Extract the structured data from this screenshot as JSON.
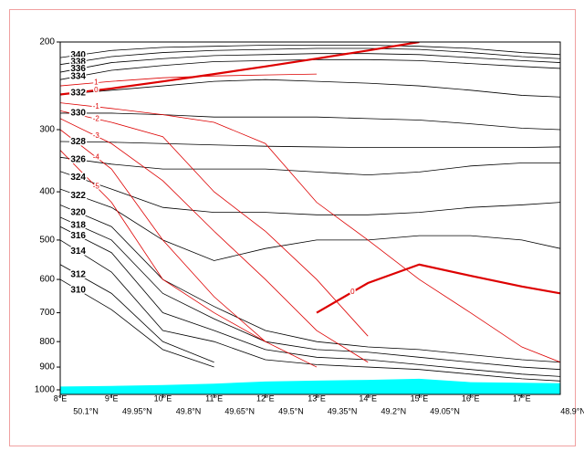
{
  "chart_data": {
    "type": "line",
    "x": [
      8,
      9,
      10,
      11,
      12,
      13,
      14,
      15,
      16,
      17,
      17.75
    ],
    "xlim": [
      8,
      17.75
    ],
    "xticks": [
      {
        "value": 8,
        "label": "8°E"
      },
      {
        "value": 9,
        "label": "9°E"
      },
      {
        "value": 10,
        "label": "10°E"
      },
      {
        "value": 11,
        "label": "11°E"
      },
      {
        "value": 12,
        "label": "12°E"
      },
      {
        "value": 13,
        "label": "13°E"
      },
      {
        "value": 14,
        "label": "14°E"
      },
      {
        "value": 15,
        "label": "15°E"
      },
      {
        "value": 16,
        "label": "16°E"
      },
      {
        "value": 17,
        "label": "17°E"
      }
    ],
    "x2ticks": [
      {
        "value": 8.5,
        "label": "50.1°N"
      },
      {
        "value": 9.5,
        "label": "49.95°N"
      },
      {
        "value": 10.5,
        "label": "49.8°N"
      },
      {
        "value": 11.5,
        "label": "49.65°N"
      },
      {
        "value": 12.5,
        "label": "49.5°N"
      },
      {
        "value": 13.5,
        "label": "49.35°N"
      },
      {
        "value": 14.5,
        "label": "49.2°N"
      },
      {
        "value": 15.5,
        "label": "49.05°N"
      },
      {
        "value": 18,
        "label": "48.9°N"
      }
    ],
    "ylim": [
      1000,
      200
    ],
    "yscale": "log",
    "yticks": [
      200,
      300,
      400,
      500,
      600,
      700,
      800,
      900,
      1000
    ],
    "terrain": {
      "color": "#00ffff",
      "values": [
        985,
        982,
        978,
        972,
        962,
        958,
        955,
        950,
        965,
        968,
        970
      ]
    },
    "series": [
      {
        "name": "340",
        "color": "#000000",
        "values": [
          215,
          208,
          205,
          204,
          203,
          203,
          203,
          204,
          206,
          210,
          212
        ]
      },
      {
        "name": "338",
        "color": "#000000",
        "values": [
          222,
          214,
          210,
          208,
          207,
          206,
          206,
          207,
          210,
          214,
          216
        ]
      },
      {
        "name": "336",
        "color": "#000000",
        "values": [
          230,
          220,
          216,
          213,
          212,
          211,
          211,
          212,
          215,
          218,
          220
        ]
      },
      {
        "name": "334",
        "color": "#000000",
        "values": [
          238,
          228,
          223,
          219,
          218,
          217,
          217,
          218,
          221,
          224,
          226
        ]
      },
      {
        "name": "332",
        "color": "#000000",
        "values": [
          255,
          250,
          245,
          240,
          238,
          240,
          242,
          245,
          250,
          256,
          258
        ]
      },
      {
        "name": "330",
        "color": "#000000",
        "values": [
          278,
          278,
          280,
          283,
          283,
          283,
          285,
          287,
          292,
          298,
          300
        ]
      },
      {
        "name": "328",
        "color": "#000000",
        "values": [
          317,
          318,
          320,
          322,
          324,
          325,
          326,
          326,
          326,
          326,
          325
        ]
      },
      {
        "name": "326",
        "color": "#000000",
        "values": [
          341,
          352,
          360,
          360,
          360,
          365,
          370,
          365,
          355,
          350,
          350
        ]
      },
      {
        "name": "324",
        "color": "#000000",
        "values": [
          364,
          395,
          430,
          440,
          440,
          445,
          445,
          440,
          430,
          425,
          420
        ]
      },
      {
        "name": "322",
        "color": "#000000",
        "values": [
          395,
          430,
          500,
          550,
          520,
          500,
          500,
          490,
          490,
          500,
          520
        ]
      },
      {
        "name": "320",
        "color": "#000000",
        "values": [
          425,
          470,
          600,
          680,
          760,
          800,
          820,
          830,
          850,
          870,
          880
        ]
      },
      {
        "name": "318",
        "color": "#000000",
        "values": [
          450,
          500,
          640,
          720,
          800,
          830,
          840,
          860,
          880,
          900,
          910
        ]
      },
      {
        "name": "316",
        "color": "#000000",
        "values": [
          470,
          530,
          700,
          760,
          830,
          860,
          870,
          890,
          910,
          930,
          940
        ]
      },
      {
        "name": "314",
        "color": "#000000",
        "values": [
          500,
          580,
          760,
          800,
          870,
          890,
          900,
          910,
          930,
          950,
          960
        ]
      },
      {
        "name": "312",
        "color": "#000000",
        "values": [
          560,
          640,
          800,
          880,
          null,
          null,
          null,
          null,
          null,
          null,
          null
        ]
      },
      {
        "name": "310",
        "color": "#000000",
        "values": [
          600,
          690,
          830,
          900,
          null,
          null,
          null,
          null,
          null,
          null,
          null
        ]
      },
      {
        "name": "1",
        "color": "#dd0000",
        "values": [
          245,
          240,
          236,
          234,
          233,
          232,
          null,
          null,
          null,
          null,
          null
        ]
      },
      {
        "name": "0",
        "color": "#dd0000",
        "values": [
          255,
          248,
          240,
          232,
          224,
          216,
          208,
          200,
          null,
          null,
          null
        ]
      },
      {
        "name": "0",
        "color": "#dd0000",
        "values": [
          null,
          null,
          null,
          null,
          null,
          700,
          610,
          560,
          590,
          620,
          640
        ]
      },
      {
        "name": "-1",
        "color": "#dd0000",
        "values": [
          265,
          272,
          280,
          290,
          320,
          420,
          500,
          600,
          700,
          820,
          880
        ]
      },
      {
        "name": "-2",
        "color": "#dd0000",
        "values": [
          275,
          290,
          310,
          400,
          480,
          600,
          780,
          null,
          null,
          null,
          null
        ]
      },
      {
        "name": "-3",
        "color": "#dd0000",
        "values": [
          285,
          320,
          380,
          480,
          600,
          760,
          880,
          null,
          null,
          null,
          null
        ]
      },
      {
        "name": "-4",
        "color": "#dd0000",
        "values": [
          300,
          360,
          500,
          650,
          800,
          900,
          null,
          null,
          null,
          null,
          null
        ]
      },
      {
        "name": "-5",
        "color": "#dd0000",
        "values": [
          330,
          420,
          600,
          700,
          800,
          null,
          null,
          null,
          null,
          null,
          null
        ]
      }
    ]
  }
}
